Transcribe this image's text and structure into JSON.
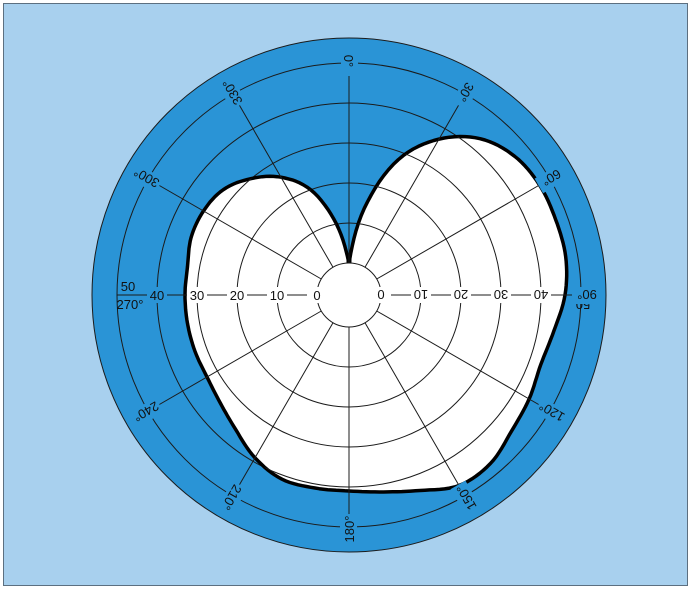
{
  "diagram": {
    "type": "polar-radiation-pattern",
    "colors": {
      "background": "#a8d0ee",
      "outer_ring": "#2a94d6",
      "inner_field": "#2a94d6",
      "pattern_fill": "#ffffff",
      "grid": "#1b1b1b"
    },
    "radial_rings": [
      0,
      10,
      20,
      30,
      40,
      50
    ],
    "radial_label_texts": {
      "left": [
        "50",
        "40",
        "30",
        "20",
        "10",
        "0"
      ],
      "right": [
        "0",
        "10",
        "20",
        "30",
        "40",
        "50"
      ]
    },
    "angle_labels": [
      {
        "deg": 0,
        "text": "0°"
      },
      {
        "deg": 30,
        "text": "30°"
      },
      {
        "deg": 60,
        "text": "60°"
      },
      {
        "deg": 90,
        "text": "90°"
      },
      {
        "deg": 120,
        "text": "120°"
      },
      {
        "deg": 150,
        "text": "150°"
      },
      {
        "deg": 180,
        "text": "180°"
      },
      {
        "deg": 210,
        "text": "210°"
      },
      {
        "deg": 240,
        "text": "240°"
      },
      {
        "deg": 270,
        "text": "270°"
      },
      {
        "deg": 300,
        "text": "300°"
      },
      {
        "deg": 330,
        "text": "330°"
      }
    ],
    "pattern_points_deg_value": [
      [
        0,
        0
      ],
      [
        10,
        14
      ],
      [
        20,
        28
      ],
      [
        30,
        37
      ],
      [
        40,
        43
      ],
      [
        50,
        46
      ],
      [
        60,
        47
      ],
      [
        70,
        47
      ],
      [
        80,
        47
      ],
      [
        90,
        46
      ],
      [
        100,
        44
      ],
      [
        110,
        43
      ],
      [
        120,
        44
      ],
      [
        130,
        45
      ],
      [
        140,
        47
      ],
      [
        150,
        47
      ],
      [
        160,
        44
      ],
      [
        170,
        42
      ],
      [
        180,
        41
      ],
      [
        190,
        41
      ],
      [
        200,
        41
      ],
      [
        210,
        39
      ],
      [
        220,
        36
      ],
      [
        230,
        34
      ],
      [
        240,
        33
      ],
      [
        250,
        33
      ],
      [
        260,
        33
      ],
      [
        270,
        33
      ],
      [
        280,
        33
      ],
      [
        290,
        34
      ],
      [
        300,
        34
      ],
      [
        310,
        33
      ],
      [
        320,
        30
      ],
      [
        330,
        26
      ],
      [
        340,
        20
      ],
      [
        350,
        10
      ],
      [
        360,
        0
      ]
    ]
  }
}
